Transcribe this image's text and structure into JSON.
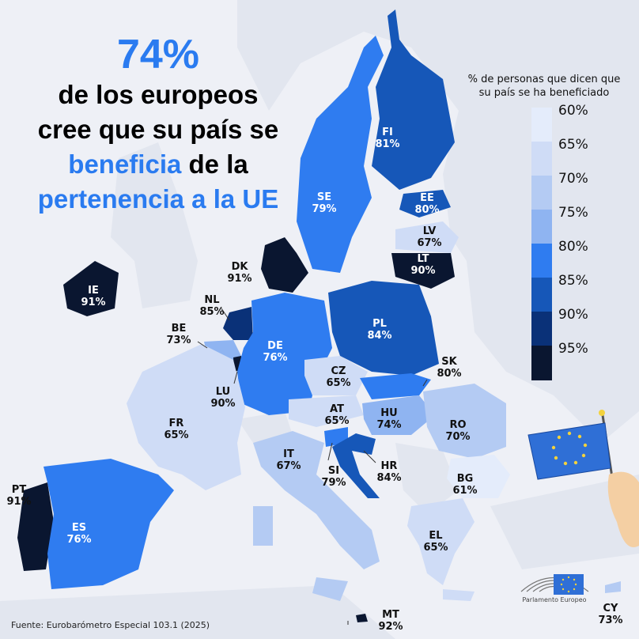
{
  "headline": {
    "percent": "74%",
    "line1": "de los europeos",
    "line2": "cree que su país se",
    "line3_blue": "beneficia",
    "line3_rest": " de la",
    "line4": "pertenencia a la UE"
  },
  "legend": {
    "title": "% de personas que dicen que su país se ha beneficiado",
    "ticks": [
      "60%",
      "65%",
      "70%",
      "75%",
      "80%",
      "85%",
      "90%",
      "95%"
    ],
    "colors": [
      "#e4ecfb",
      "#cfdcf6",
      "#b4cbf3",
      "#8fb4f1",
      "#2f7cf0",
      "#1657b8",
      "#0a3178",
      "#0a1630"
    ]
  },
  "countries": [
    {
      "code": "FI",
      "value": "81%"
    },
    {
      "code": "SE",
      "value": "79%"
    },
    {
      "code": "EE",
      "value": "80%"
    },
    {
      "code": "LV",
      "value": "67%"
    },
    {
      "code": "LT",
      "value": "90%"
    },
    {
      "code": "DK",
      "value": "91%"
    },
    {
      "code": "IE",
      "value": "91%"
    },
    {
      "code": "NL",
      "value": "85%"
    },
    {
      "code": "BE",
      "value": "73%"
    },
    {
      "code": "LU",
      "value": "90%"
    },
    {
      "code": "DE",
      "value": "76%"
    },
    {
      "code": "PL",
      "value": "84%"
    },
    {
      "code": "CZ",
      "value": "65%"
    },
    {
      "code": "SK",
      "value": "80%"
    },
    {
      "code": "AT",
      "value": "65%"
    },
    {
      "code": "HU",
      "value": "74%"
    },
    {
      "code": "RO",
      "value": "70%"
    },
    {
      "code": "FR",
      "value": "65%"
    },
    {
      "code": "IT",
      "value": "67%"
    },
    {
      "code": "SI",
      "value": "79%"
    },
    {
      "code": "HR",
      "value": "84%"
    },
    {
      "code": "BG",
      "value": "61%"
    },
    {
      "code": "PT",
      "value": "91%"
    },
    {
      "code": "ES",
      "value": "76%"
    },
    {
      "code": "EL",
      "value": "65%"
    },
    {
      "code": "MT",
      "value": "92%"
    },
    {
      "code": "CY",
      "value": "73%"
    }
  ],
  "source": "Fuente: Eurobarómetro Especial  103.1 (2025)",
  "logo_text": "Parlamento Europeo"
}
